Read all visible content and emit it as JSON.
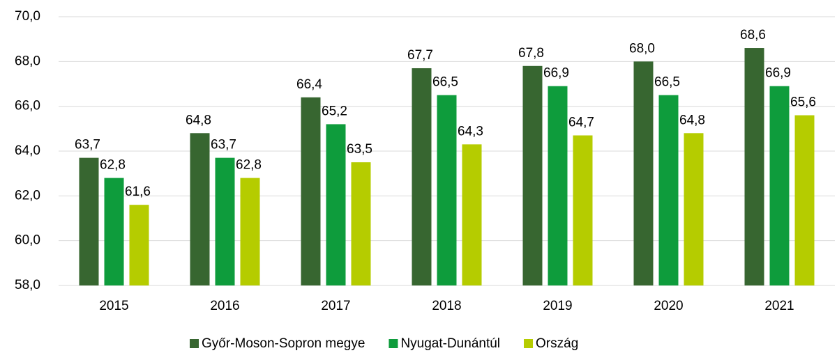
{
  "chart_data": {
    "type": "bar",
    "categories": [
      "2015",
      "2016",
      "2017",
      "2018",
      "2019",
      "2020",
      "2021"
    ],
    "series": [
      {
        "name": "Győr-Moson-Sopron megye",
        "color": "#376630",
        "values": [
          63.7,
          64.8,
          66.4,
          67.7,
          67.8,
          68.0,
          68.6
        ],
        "value_labels": [
          "63,7",
          "64,8",
          "66,4",
          "67,7",
          "67,8",
          "68,0",
          "68,6"
        ]
      },
      {
        "name": "Nyugat-Dunántúl",
        "color": "#0e9c3c",
        "values": [
          62.8,
          63.7,
          65.2,
          66.5,
          66.9,
          66.5,
          66.9
        ],
        "value_labels": [
          "62,8",
          "63,7",
          "65,2",
          "66,5",
          "66,9",
          "66,5",
          "66,9"
        ]
      },
      {
        "name": "Ország",
        "color": "#b5cc00",
        "values": [
          61.6,
          62.8,
          63.5,
          64.3,
          64.7,
          64.8,
          65.6
        ],
        "value_labels": [
          "61,6",
          "62,8",
          "63,5",
          "64,3",
          "64,7",
          "64,8",
          "65,6"
        ]
      }
    ],
    "ylim": [
      58,
      70
    ],
    "yticks": [
      {
        "value": 58,
        "label": "58,0"
      },
      {
        "value": 60,
        "label": "60,0"
      },
      {
        "value": 62,
        "label": "62,0"
      },
      {
        "value": 64,
        "label": "64,0"
      },
      {
        "value": 66,
        "label": "66,0"
      },
      {
        "value": 68,
        "label": "68,0"
      },
      {
        "value": 70,
        "label": "70,0"
      }
    ],
    "grid": true,
    "legend": "bottom"
  }
}
